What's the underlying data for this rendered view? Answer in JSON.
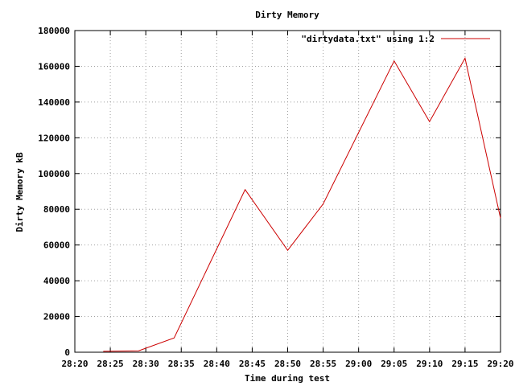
{
  "chart_data": {
    "type": "line",
    "title": "Dirty Memory",
    "xlabel": "Time during test",
    "ylabel": "Dirty Memory kB",
    "x_ticks": [
      "28:20",
      "28:25",
      "28:30",
      "28:35",
      "28:40",
      "28:45",
      "28:50",
      "28:55",
      "29:00",
      "29:05",
      "29:10",
      "29:15",
      "29:20"
    ],
    "y_ticks": [
      "0",
      "20000",
      "40000",
      "60000",
      "80000",
      "100000",
      "120000",
      "140000",
      "160000",
      "180000"
    ],
    "xlim": [
      "28:20",
      "29:20"
    ],
    "ylim": [
      0,
      180000
    ],
    "grid": true,
    "legend_position": "top-right",
    "series": [
      {
        "name": "\"dirtydata.txt\" using 1:2",
        "color": "#cc0000",
        "x": [
          "28:24",
          "28:29",
          "28:34",
          "28:44",
          "28:50",
          "28:55",
          "29:05",
          "29:10",
          "29:15",
          "29:20"
        ],
        "y": [
          500,
          800,
          8000,
          91000,
          57000,
          83000,
          163000,
          129000,
          164500,
          75000
        ]
      }
    ]
  }
}
